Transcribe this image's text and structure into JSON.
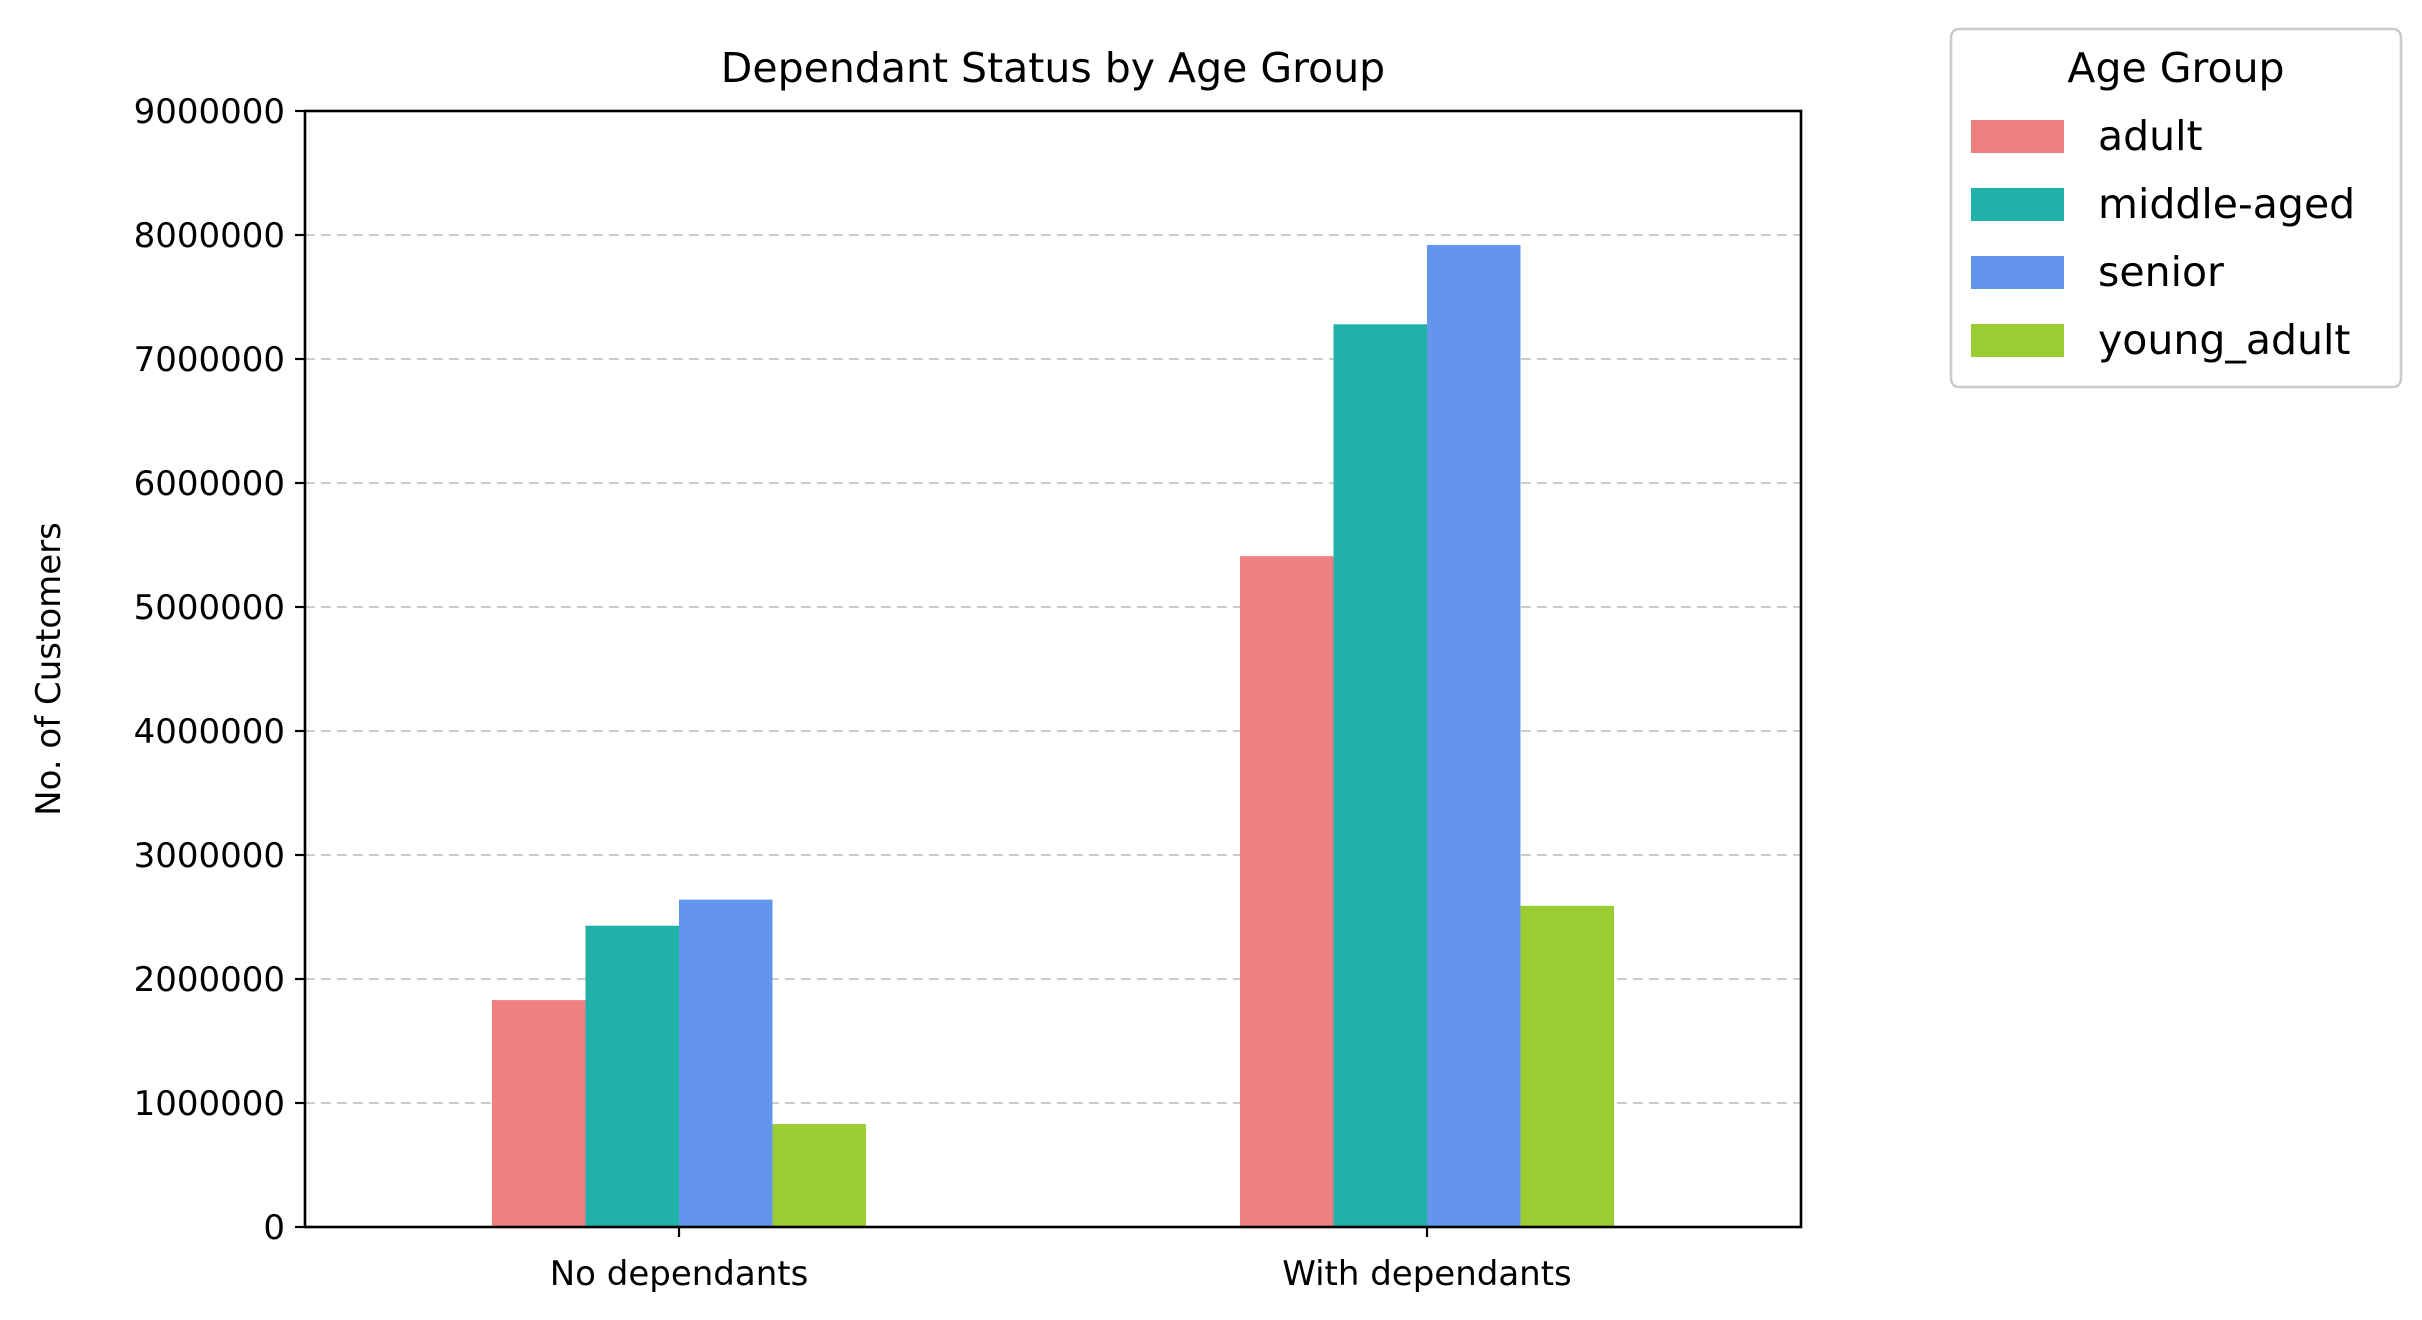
{
  "chart_data": {
    "type": "bar",
    "title": "Dependant Status by Age Group",
    "xlabel": "",
    "ylabel": "No. of Customers",
    "categories": [
      "No dependants",
      "With dependants"
    ],
    "series": [
      {
        "name": "adult",
        "color": "#F08080",
        "values": [
          1830000,
          5410000
        ]
      },
      {
        "name": "middle-aged",
        "color": "#20B2AA",
        "values": [
          2430000,
          7280000
        ]
      },
      {
        "name": "senior",
        "color": "#6495ED",
        "values": [
          2640000,
          7920000
        ]
      },
      {
        "name": "young_adult",
        "color": "#9ACD32",
        "values": [
          830000,
          2590000
        ]
      }
    ],
    "ylim": [
      0,
      9000000
    ],
    "yticks": [
      "0",
      "1000000",
      "2000000",
      "3000000",
      "4000000",
      "5000000",
      "6000000",
      "7000000",
      "8000000",
      "9000000"
    ],
    "grid": {
      "axis": "y",
      "style": "dashed",
      "color": "#cccccc"
    },
    "legend": {
      "title": "Age Group",
      "placement": "outside-top-right"
    }
  }
}
